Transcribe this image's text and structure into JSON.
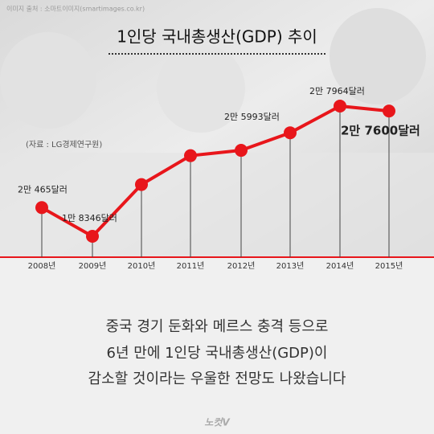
{
  "image_credit": "이미지 출처 : 소마트이미지(smartimages.co.kr)",
  "chart_data": {
    "type": "line",
    "title": "1인당 국내총생산(GDP) 추이",
    "source": "(자료 : LG경제연구원)",
    "categories": [
      "2008년",
      "2009년",
      "2010년",
      "2011년",
      "2012년",
      "2013년",
      "2014년",
      "2015년"
    ],
    "values": [
      20465,
      18346,
      22170,
      24302,
      24696,
      25993,
      27964,
      27600
    ],
    "value_labels": [
      "2만 465달러",
      "1만 8346달러",
      null,
      null,
      null,
      "2만 5993달러",
      "2만 7964달러",
      "2만 7600달러"
    ],
    "color": "#e8161b"
  },
  "caption": [
    "중국 경기 둔화와 메르스 충격 등으로",
    "6년 만에 1인당 국내총생산(GDP)이",
    "감소할 것이라는 우울한 전망도 나왔습니다"
  ],
  "logo": "노컷V"
}
